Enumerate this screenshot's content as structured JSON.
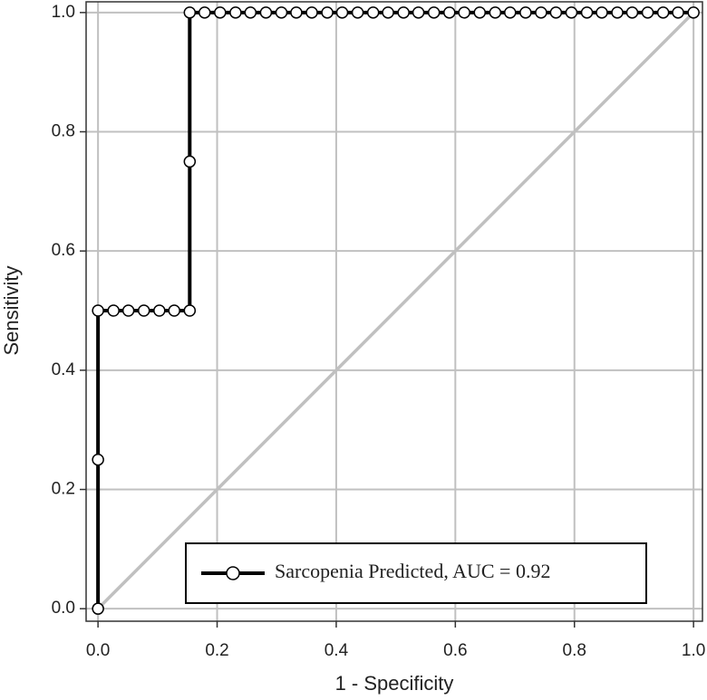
{
  "chart_data": {
    "type": "line",
    "x_label": "1 - Specificity",
    "y_label": "Sensitivity",
    "x": [
      0,
      0,
      0,
      0.026,
      0.051,
      0.077,
      0.103,
      0.128,
      0.154,
      0.154,
      0.154,
      0.179,
      0.205,
      0.231,
      0.256,
      0.282,
      0.308,
      0.333,
      0.359,
      0.385,
      0.41,
      0.436,
      0.462,
      0.487,
      0.513,
      0.538,
      0.564,
      0.59,
      0.615,
      0.641,
      0.667,
      0.692,
      0.718,
      0.744,
      0.769,
      0.795,
      0.821,
      0.846,
      0.872,
      0.897,
      0.923,
      0.949,
      0.974,
      1
    ],
    "series": [
      {
        "name": "Sarcopenia Predicted, AUC = 0.92",
        "color": "#000000",
        "marker_fill": "#ffffff",
        "values": [
          0,
          0.25,
          0.5,
          0.5,
          0.5,
          0.5,
          0.5,
          0.5,
          0.5,
          0.75,
          1,
          1,
          1,
          1,
          1,
          1,
          1,
          1,
          1,
          1,
          1,
          1,
          1,
          1,
          1,
          1,
          1,
          1,
          1,
          1,
          1,
          1,
          1,
          1,
          1,
          1,
          1,
          1,
          1,
          1,
          1,
          1,
          1,
          1
        ]
      }
    ],
    "xlim": [
      -0.02,
      1.015
    ],
    "ylim": [
      -0.021,
      1.018
    ],
    "xticks": [
      {
        "value": 0,
        "label": "0.0"
      },
      0.2,
      0.4,
      0.6,
      0.8,
      {
        "value": 1,
        "label": "1.0"
      }
    ],
    "yticks": [
      {
        "value": 0,
        "label": "0.0"
      },
      0.2,
      0.4,
      0.6,
      0.8,
      {
        "value": 1,
        "label": "1.0"
      }
    ],
    "grid": true,
    "grid_color": "#c0c0c0",
    "diagonal": true,
    "legend_position": "lower right"
  }
}
